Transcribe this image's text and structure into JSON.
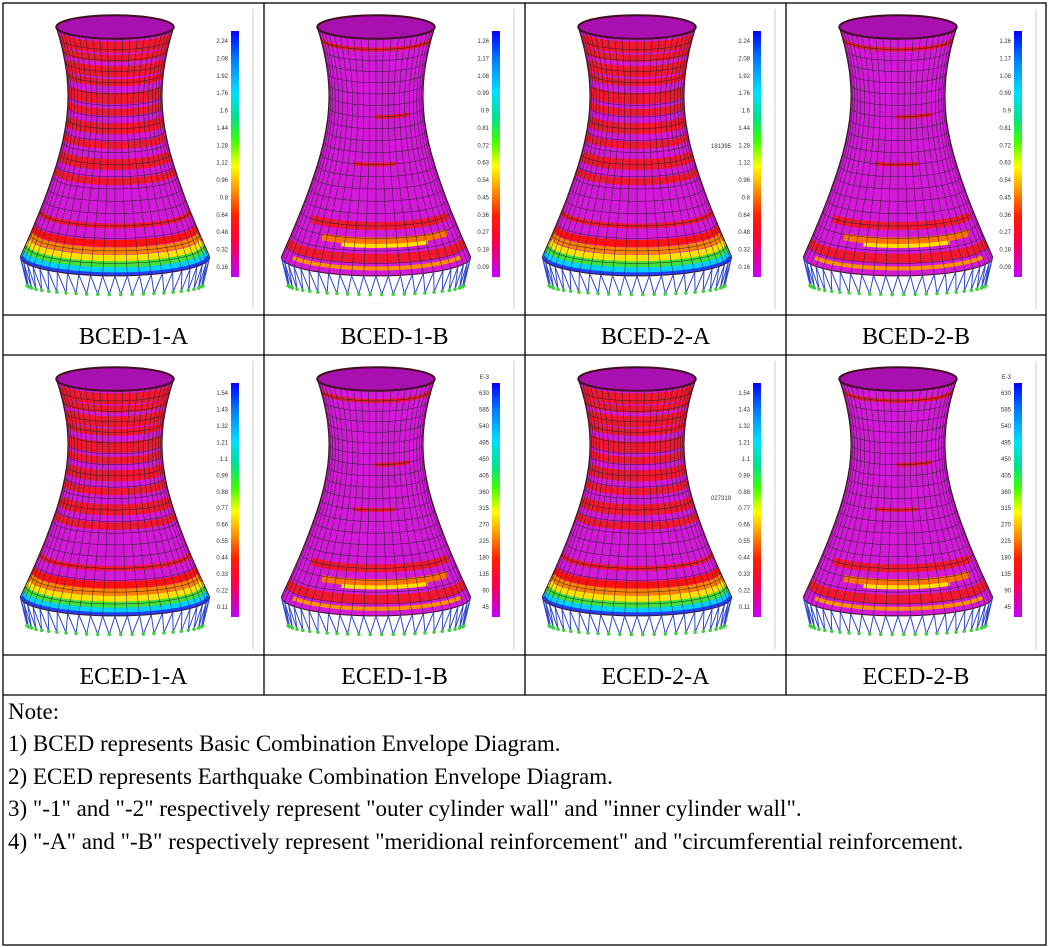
{
  "panels": [
    {
      "caption": "BCED-1-A",
      "legend_labels": [
        "2.24",
        "2.08",
        "1.92",
        "1.76",
        "1.6",
        "1.44",
        "1.28",
        "1.12",
        "0.96",
        "0.8",
        "0.64",
        "0.48",
        "0.32",
        "0.16"
      ]
    },
    {
      "caption": "BCED-1-B",
      "legend_labels": [
        "1.26",
        "1.17",
        "1.08",
        "0.99",
        "0.9",
        "0.81",
        "0.72",
        "0.63",
        "0.54",
        "0.45",
        "0.36",
        "0.27",
        "0.18",
        "0.09"
      ]
    },
    {
      "caption": "BCED-2-A",
      "legend_labels": [
        "2.24",
        "2.08",
        "1.92",
        "1.76",
        "1.6",
        "1.44",
        "1.28",
        "1.12",
        "0.96",
        "0.8",
        "0.64",
        "0.48",
        "0.32",
        "0.16"
      ],
      "annotation": "181395"
    },
    {
      "caption": "BCED-2-B",
      "legend_labels": [
        "1.26",
        "1.17",
        "1.08",
        "0.99",
        "0.9",
        "0.81",
        "0.72",
        "0.63",
        "0.54",
        "0.45",
        "0.36",
        "0.27",
        "0.18",
        "0.09"
      ]
    },
    {
      "caption": "ECED-1-A",
      "legend_labels": [
        "1.54",
        "1.43",
        "1.32",
        "1.21",
        "1.1",
        "0.99",
        "0.88",
        "0.77",
        "0.66",
        "0.55",
        "0.44",
        "0.33",
        "0.22",
        "0.11"
      ]
    },
    {
      "caption": "ECED-1-B",
      "legend_unit": "E-3",
      "legend_labels": [
        "630",
        "585",
        "540",
        "495",
        "450",
        "405",
        "360",
        "315",
        "270",
        "225",
        "180",
        "135",
        "90",
        "45"
      ]
    },
    {
      "caption": "ECED-2-A",
      "legend_labels": [
        "1.54",
        "1.43",
        "1.32",
        "1.21",
        "1.1",
        "0.99",
        "0.88",
        "0.77",
        "0.66",
        "0.55",
        "0.44",
        "0.33",
        "0.22",
        "0.11"
      ],
      "annotation": "027319"
    },
    {
      "caption": "ECED-2-B",
      "legend_unit": "E-3",
      "legend_labels": [
        "630",
        "585",
        "540",
        "495",
        "450",
        "405",
        "360",
        "315",
        "270",
        "225",
        "180",
        "135",
        "90",
        "45"
      ]
    }
  ],
  "notes": {
    "heading": "Note:",
    "items": [
      "1) BCED represents Basic Combination Envelope Diagram.",
      "2) ECED represents Earthquake Combination Envelope Diagram.",
      "3) \"-1\" and \"-2\" respectively represent \"outer cylinder wall\" and \"inner cylinder wall\".",
      "4) \"-A\" and \"-B\" respectively represent \"meridional reinforcement\" and \"circumferential reinforcement."
    ]
  }
}
